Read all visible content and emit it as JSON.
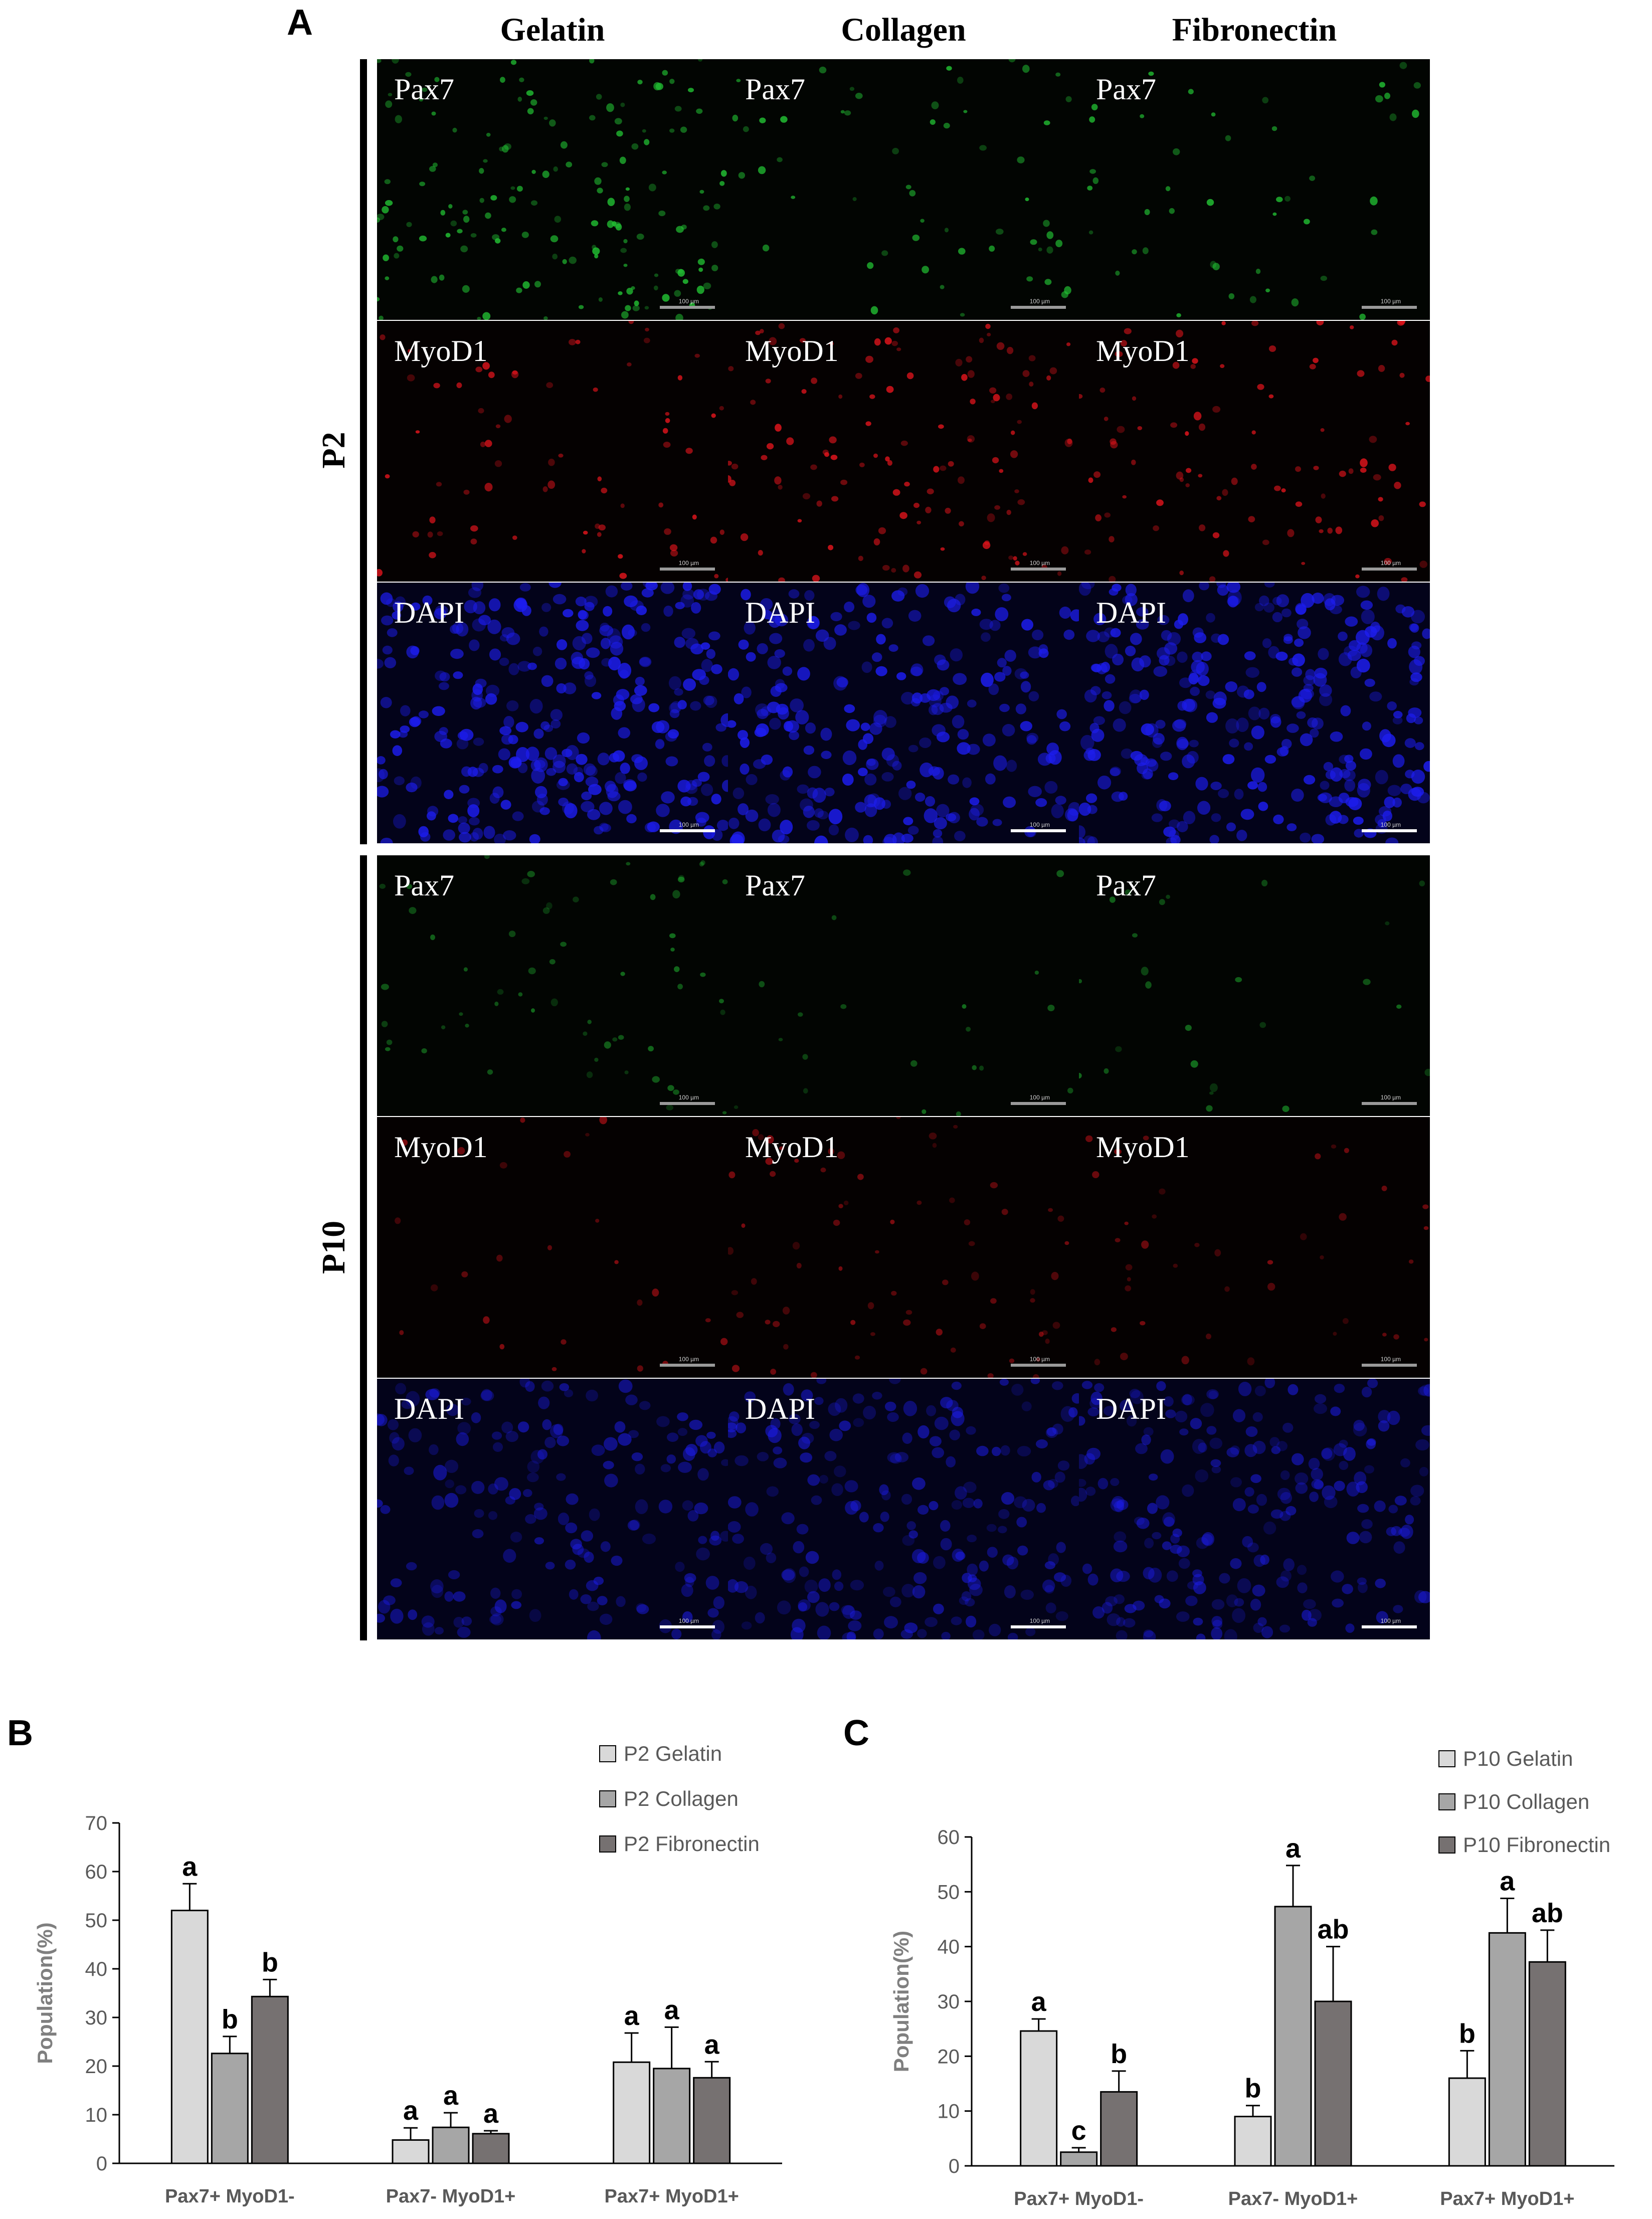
{
  "panel_labels": {
    "a": "A",
    "b": "B",
    "c": "C"
  },
  "columns": [
    "Gelatin",
    "Collagen",
    "Fibronectin"
  ],
  "rows": [
    "P2",
    "P10"
  ],
  "channels": [
    {
      "label": "Pax7",
      "color": "#22c033",
      "bg": "#020502"
    },
    {
      "label": "MyoD1",
      "color": "#e0141c",
      "bg": "#050101"
    },
    {
      "label": "DAPI",
      "color": "#1d1df0",
      "bg": "#03031a"
    }
  ],
  "scalebar_label": "100 µm",
  "chart_data": [
    {
      "type": "bar",
      "categories": [
        "Pax7+ MyoD1-",
        "Pax7- MyoD1+",
        "Pax7+ MyoD1+"
      ],
      "ylabel": "Population(%)",
      "ylim": [
        0,
        70
      ],
      "yticks": [
        0,
        10,
        20,
        30,
        40,
        50,
        60,
        70
      ],
      "grid": false,
      "legend_position": "top-right",
      "series": [
        {
          "name": "P2 Gelatin",
          "color": "#d9d9d9",
          "values": [
            52,
            4.8,
            20.8
          ],
          "errors": [
            5.5,
            2.5,
            6
          ],
          "letters": [
            "a",
            "a",
            "a"
          ]
        },
        {
          "name": "P2 Collagen",
          "color": "#a6a6a6",
          "values": [
            22.6,
            7.4,
            19.5
          ],
          "errors": [
            3.5,
            3,
            8.5
          ],
          "letters": [
            "b",
            "a",
            "a"
          ]
        },
        {
          "name": "P2 Fibronectin",
          "color": "#767171",
          "values": [
            34.3,
            6.1,
            17.6
          ],
          "errors": [
            3.5,
            0.6,
            3.3
          ],
          "letters": [
            "b",
            "a",
            "a"
          ]
        }
      ]
    },
    {
      "type": "bar",
      "categories": [
        "Pax7+ MyoD1-",
        "Pax7- MyoD1+",
        "Pax7+ MyoD1+"
      ],
      "ylabel": "Population(%)",
      "ylim": [
        0,
        60
      ],
      "yticks": [
        0,
        10,
        20,
        30,
        40,
        50,
        60
      ],
      "grid": false,
      "legend_position": "top-right",
      "series": [
        {
          "name": "P10 Gelatin",
          "color": "#d9d9d9",
          "values": [
            24.6,
            9,
            16
          ],
          "errors": [
            2.2,
            2,
            5
          ],
          "letters": [
            "a",
            "b",
            "b"
          ]
        },
        {
          "name": "P10 Collagen",
          "color": "#a6a6a6",
          "values": [
            2.5,
            47.3,
            42.5
          ],
          "errors": [
            0.8,
            7.5,
            6.3
          ],
          "letters": [
            "c",
            "a",
            "a"
          ]
        },
        {
          "name": "P10 Fibronectin",
          "color": "#767171",
          "values": [
            13.5,
            30,
            37.2
          ],
          "errors": [
            3.8,
            10,
            5.8
          ],
          "letters": [
            "b",
            "ab",
            "ab"
          ]
        }
      ]
    }
  ]
}
